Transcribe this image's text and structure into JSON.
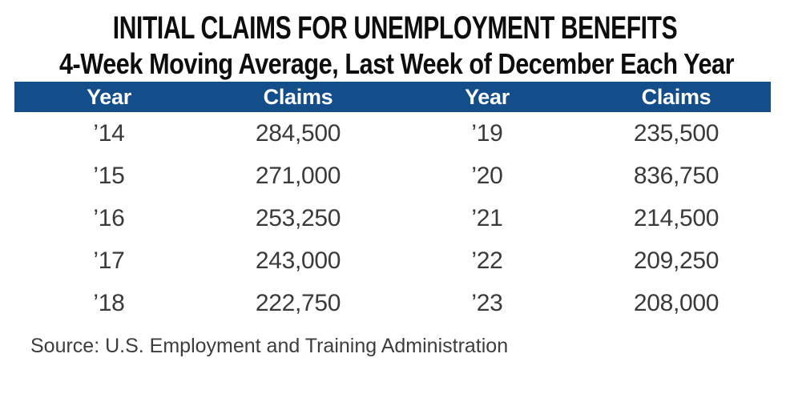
{
  "title": "INITIAL CLAIMS FOR UNEMPLOYMENT BENEFITS",
  "subtitle": "4-Week Moving Average, Last Week of December Each Year",
  "table": {
    "columns": [
      "Year",
      "Claims",
      "Year",
      "Claims"
    ],
    "rows": [
      [
        "’14",
        "284,500",
        "’19",
        "235,500"
      ],
      [
        "’15",
        "271,000",
        "’20",
        "836,750"
      ],
      [
        "’16",
        "253,250",
        "’21",
        "214,500"
      ],
      [
        "’17",
        "243,000",
        "’22",
        "209,250"
      ],
      [
        "’18",
        "222,750",
        "’23",
        "208,000"
      ]
    ],
    "header_bg_color": "#134d8a",
    "header_text_color": "#ffffff",
    "body_text_color": "#3a3a3a"
  },
  "source": "Source: U.S. Employment and Training Administration",
  "chart_data": {
    "type": "table",
    "title": "INITIAL CLAIMS FOR UNEMPLOYMENT BENEFITS",
    "subtitle": "4-Week Moving Average, Last Week of December Each Year",
    "columns": [
      "Year",
      "Claims"
    ],
    "categories": [
      "’14",
      "’15",
      "’16",
      "’17",
      "’18",
      "’19",
      "’20",
      "’21",
      "’22",
      "’23"
    ],
    "values": [
      284500,
      271000,
      253250,
      243000,
      222750,
      235500,
      836750,
      214500,
      209250,
      208000
    ],
    "source": "Source: U.S. Employment and Training Administration"
  }
}
